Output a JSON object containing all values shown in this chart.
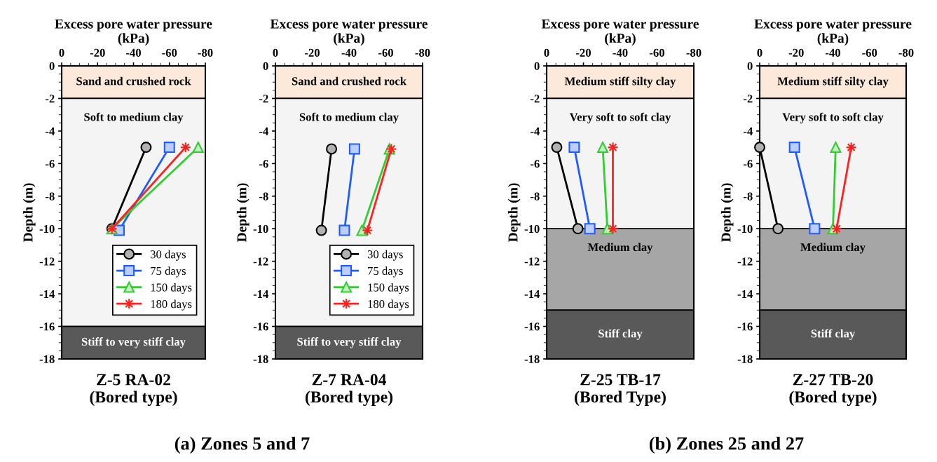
{
  "chart_data": [
    {
      "type": "line",
      "title": "Z-5 RA-02\n(Bored type)",
      "xlabel": "Excess pore water pressure\n(kPa)",
      "ylabel": "Depth (m)",
      "xlim": [
        0,
        -80
      ],
      "xticks": [
        0,
        -20,
        -40,
        -60,
        -80
      ],
      "ylim": [
        -18,
        0
      ],
      "yticks": [
        0,
        -2,
        -4,
        -6,
        -8,
        -10,
        -12,
        -14,
        -16,
        -18
      ],
      "grid": false,
      "legend": "bottom right",
      "line_style": "solid",
      "bands": [
        {
          "axis": "y",
          "from": 0,
          "to": -2,
          "label": "Sand and crushed rock",
          "color": "#fde9d9"
        },
        {
          "axis": "y",
          "from": -2,
          "to": -16,
          "label": "Soft to medium clay",
          "color": "#f4f4f4"
        },
        {
          "axis": "y",
          "from": -16,
          "to": -18,
          "label": "Stiff to very stiff clay",
          "color": "#595959"
        }
      ],
      "annotations": [
        "(a) Zones 5 and 7"
      ],
      "series": [
        {
          "name": "30 days",
          "color": "#000000",
          "marker": "circle",
          "x": [
            -47,
            -28
          ],
          "values": [
            -5,
            -10
          ]
        },
        {
          "name": "75 days",
          "color": "#1f5cff",
          "marker": "square",
          "x": [
            -60,
            -32
          ],
          "values": [
            -5,
            -10.1
          ]
        },
        {
          "name": "150 days",
          "color": "#33cc33",
          "marker": "triangle",
          "x": [
            -76,
            -28
          ],
          "values": [
            -5,
            -10
          ]
        },
        {
          "name": "180 days",
          "color": "#ff2020",
          "marker": "star",
          "x": [
            -69,
            -28
          ],
          "values": [
            -5,
            -10
          ]
        }
      ]
    },
    {
      "type": "line",
      "title": "Z-7 RA-04\n(Bored type)",
      "xlabel": "Excess pore water pressure\n(kPa)",
      "ylabel": "Depth (m)",
      "xlim": [
        0,
        -80
      ],
      "xticks": [
        0,
        -20,
        -40,
        -60,
        -80
      ],
      "ylim": [
        -18,
        0
      ],
      "yticks": [
        0,
        -2,
        -4,
        -6,
        -8,
        -10,
        -12,
        -14,
        -16,
        -18
      ],
      "grid": false,
      "legend": "bottom right",
      "line_style": "solid",
      "bands": [
        {
          "axis": "y",
          "from": 0,
          "to": -2,
          "label": "Sand and crushed rock",
          "color": "#fde9d9"
        },
        {
          "axis": "y",
          "from": -2,
          "to": -16,
          "label": "Soft to medium clay",
          "color": "#f4f4f4"
        },
        {
          "axis": "y",
          "from": -16,
          "to": -18,
          "label": "Stiff to very stiff clay",
          "color": "#595959"
        }
      ],
      "series": [
        {
          "name": "30 days",
          "color": "#000000",
          "marker": "circle",
          "x": [
            -30.5,
            -25
          ],
          "values": [
            -5.1,
            -10.1
          ]
        },
        {
          "name": "75 days",
          "color": "#1f5cff",
          "marker": "square",
          "x": [
            -43,
            -37.5
          ],
          "values": [
            -5.1,
            -10.1
          ]
        },
        {
          "name": "150 days",
          "color": "#33cc33",
          "marker": "triangle",
          "x": [
            -62,
            -47
          ],
          "values": [
            -5.1,
            -10.1
          ]
        },
        {
          "name": "180 days",
          "color": "#ff2020",
          "marker": "star",
          "x": [
            -63,
            -50
          ],
          "values": [
            -5.1,
            -10.1
          ]
        }
      ]
    },
    {
      "type": "line",
      "title": "Z-25 TB-17\n(Bored Type)",
      "xlabel": "Excess pore water pressure\n(kPa)",
      "ylabel": "Depth (m)",
      "xlim": [
        0,
        -80
      ],
      "xticks": [
        0,
        -20,
        -40,
        -60,
        -80
      ],
      "ylim": [
        -18,
        0
      ],
      "yticks": [
        0,
        -2,
        -4,
        -6,
        -8,
        -10,
        -12,
        -14,
        -16,
        -18
      ],
      "grid": false,
      "line_style": "solid",
      "bands": [
        {
          "axis": "y",
          "from": 0,
          "to": -2,
          "label": "Medium stiff silty clay",
          "color": "#fde9d9"
        },
        {
          "axis": "y",
          "from": -2,
          "to": -10,
          "label": "Very soft to soft clay",
          "color": "#f4f4f4"
        },
        {
          "axis": "y",
          "from": -10,
          "to": -15,
          "label": "Medium clay",
          "color": "#a6a6a6"
        },
        {
          "axis": "y",
          "from": -15,
          "to": -18,
          "label": "Stiff clay",
          "color": "#595959"
        }
      ],
      "annotations": [
        "(b) Zones 25 and 27"
      ],
      "series": [
        {
          "color": "#000000",
          "marker": "circle",
          "x": [
            -5.5,
            -17
          ],
          "values": [
            -5,
            -10
          ]
        },
        {
          "color": "#1f5cff",
          "marker": "square",
          "x": [
            -15,
            -23.5
          ],
          "values": [
            -5,
            -10
          ]
        },
        {
          "color": "#33cc33",
          "marker": "triangle",
          "x": [
            -30.5,
            -33
          ],
          "values": [
            -5,
            -10
          ]
        },
        {
          "color": "#ff2020",
          "marker": "star",
          "x": [
            -36,
            -36
          ],
          "values": [
            -5,
            -10
          ]
        }
      ]
    },
    {
      "type": "line",
      "title": "Z-27 TB-20\n(Bored type)",
      "xlabel": "Excess pore water pressure\n(kPa)",
      "ylabel": "Depth (m)",
      "xlim": [
        0,
        -80
      ],
      "xticks": [
        0,
        -20,
        -40,
        -60,
        -80
      ],
      "ylim": [
        -18,
        0
      ],
      "yticks": [
        0,
        -2,
        -4,
        -6,
        -8,
        -10,
        -12,
        -14,
        -16,
        -18
      ],
      "grid": false,
      "line_style": "solid",
      "bands": [
        {
          "axis": "y",
          "from": 0,
          "to": -2,
          "label": "Medium stiff silty clay",
          "color": "#fde9d9"
        },
        {
          "axis": "y",
          "from": -2,
          "to": -10,
          "label": "Very soft to soft clay",
          "color": "#f4f4f4"
        },
        {
          "axis": "y",
          "from": -10,
          "to": -15,
          "label": "Medium clay",
          "color": "#a6a6a6"
        },
        {
          "axis": "y",
          "from": -15,
          "to": -18,
          "label": "Stiff clay",
          "color": "#595959"
        }
      ],
      "series": [
        {
          "color": "#000000",
          "marker": "circle",
          "x": [
            0,
            -10
          ],
          "values": [
            -5,
            -10
          ]
        },
        {
          "color": "#1f5cff",
          "marker": "square",
          "x": [
            -19,
            -30
          ],
          "values": [
            -5,
            -10
          ]
        },
        {
          "color": "#33cc33",
          "marker": "triangle",
          "x": [
            -41.5,
            -40
          ],
          "values": [
            -5,
            -10
          ]
        },
        {
          "color": "#ff2020",
          "marker": "star",
          "x": [
            -50,
            -42
          ],
          "values": [
            -5,
            -10
          ]
        }
      ]
    }
  ]
}
